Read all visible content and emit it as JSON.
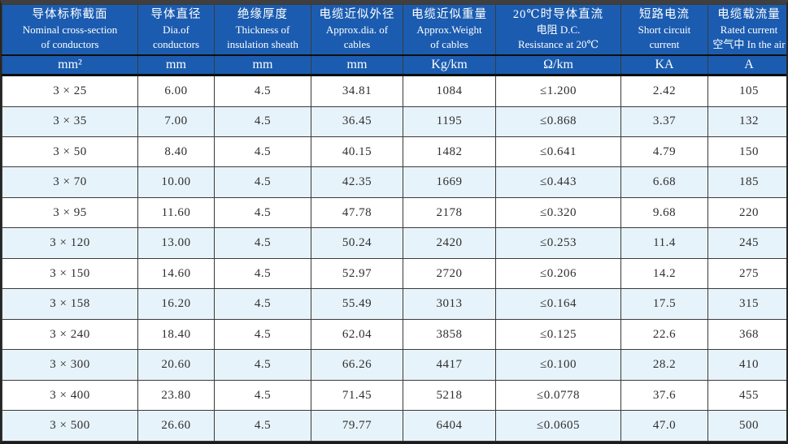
{
  "colors": {
    "header_bg": "#1b5cb0",
    "header_text": "#ffffff",
    "row_bg": "#ffffff",
    "row_alt_bg": "#e7f3fb",
    "grid_line": "#3a3a3a",
    "body_text": "#2e2e2e"
  },
  "table": {
    "columns": [
      {
        "lines": [
          "导体标称截面",
          "Nominal cross-section",
          "of conductors"
        ],
        "unit": "mm²"
      },
      {
        "lines": [
          "导体直径",
          "Dia.of",
          "conductors"
        ],
        "unit": "mm"
      },
      {
        "lines": [
          "绝缘厚度",
          "Thickness of",
          "insulation sheath"
        ],
        "unit": "mm"
      },
      {
        "lines": [
          "电缆近似外径",
          "Approx.dia. of",
          "cables"
        ],
        "unit": "mm"
      },
      {
        "lines": [
          "电缆近似重量",
          "Approx.Weight",
          "of cables"
        ],
        "unit": "Kg/km"
      },
      {
        "lines": [
          "20℃时导体直流",
          "电阻 D.C.",
          "Resistance at 20℃"
        ],
        "unit": "Ω/km"
      },
      {
        "lines": [
          "短路电流",
          "Short circuit",
          "current"
        ],
        "unit": "KA"
      },
      {
        "lines": [
          "电缆载流量",
          "Rated current",
          "空气中 In the air"
        ],
        "unit": "A"
      }
    ],
    "rows": [
      [
        "3 × 25",
        "6.00",
        "4.5",
        "34.81",
        "1084",
        "≤1.200",
        "2.42",
        "105"
      ],
      [
        "3 × 35",
        "7.00",
        "4.5",
        "36.45",
        "1195",
        "≤0.868",
        "3.37",
        "132"
      ],
      [
        "3 × 50",
        "8.40",
        "4.5",
        "40.15",
        "1482",
        "≤0.641",
        "4.79",
        "150"
      ],
      [
        "3 × 70",
        "10.00",
        "4.5",
        "42.35",
        "1669",
        "≤0.443",
        "6.68",
        "185"
      ],
      [
        "3 × 95",
        "11.60",
        "4.5",
        "47.78",
        "2178",
        "≤0.320",
        "9.68",
        "220"
      ],
      [
        "3 × 120",
        "13.00",
        "4.5",
        "50.24",
        "2420",
        "≤0.253",
        "11.4",
        "245"
      ],
      [
        "3 × 150",
        "14.60",
        "4.5",
        "52.97",
        "2720",
        "≤0.206",
        "14.2",
        "275"
      ],
      [
        "3 × 158",
        "16.20",
        "4.5",
        "55.49",
        "3013",
        "≤0.164",
        "17.5",
        "315"
      ],
      [
        "3 × 240",
        "18.40",
        "4.5",
        "62.04",
        "3858",
        "≤0.125",
        "22.6",
        "368"
      ],
      [
        "3 × 300",
        "20.60",
        "4.5",
        "66.26",
        "4417",
        "≤0.100",
        "28.2",
        "410"
      ],
      [
        "3 × 400",
        "23.80",
        "4.5",
        "71.45",
        "5218",
        "≤0.0778",
        "37.6",
        "455"
      ],
      [
        "3 × 500",
        "26.60",
        "4.5",
        "79.77",
        "6404",
        "≤0.0605",
        "47.0",
        "500"
      ]
    ]
  }
}
